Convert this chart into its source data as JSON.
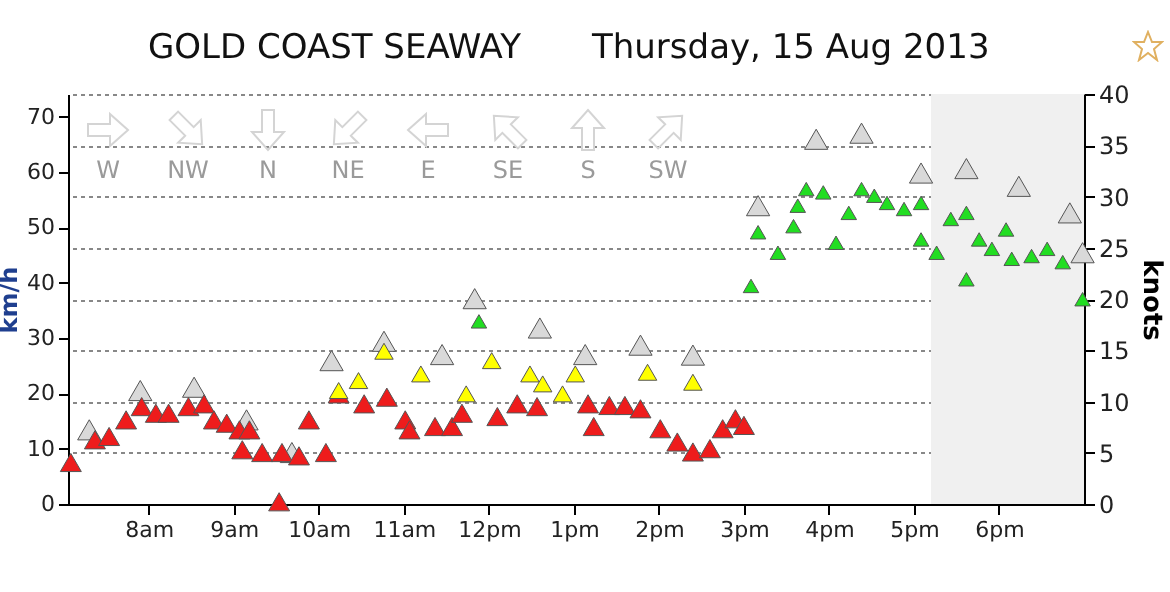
{
  "chart_data": {
    "type": "scatter",
    "title": "GOLD COAST SEAWAY",
    "subtitle": "Thursday, 15 Aug 2013",
    "ylabel": "km/h",
    "y2label": "knots",
    "annotations": [
      "W",
      "NW",
      "N",
      "NE",
      "E",
      "SE",
      "S",
      "SW"
    ],
    "xlim": [
      "2013-08-15T07:03",
      "2013-08-15T19:00"
    ],
    "xticks": [
      {
        "value": "2013-08-15T08:00",
        "label": "8am"
      },
      {
        "value": "2013-08-15T09:00",
        "label": "9am"
      },
      {
        "value": "2013-08-15T10:00",
        "label": "10am"
      },
      {
        "value": "2013-08-15T11:00",
        "label": "11am"
      },
      {
        "value": "2013-08-15T12:00",
        "label": "12pm"
      },
      {
        "value": "2013-08-15T13:00",
        "label": "1pm"
      },
      {
        "value": "2013-08-15T14:00",
        "label": "2pm"
      },
      {
        "value": "2013-08-15T15:00",
        "label": "3pm"
      },
      {
        "value": "2013-08-15T16:00",
        "label": "4pm"
      },
      {
        "value": "2013-08-15T17:00",
        "label": "5pm"
      },
      {
        "value": "2013-08-15T18:00",
        "label": "6pm"
      }
    ],
    "ylim": [
      0,
      74.08
    ],
    "yticks": [
      0,
      10,
      20,
      30,
      40,
      50,
      60,
      70
    ],
    "y2lim": [
      0,
      40
    ],
    "y2ticks": [
      0,
      5,
      10,
      15,
      20,
      25,
      30,
      35,
      40
    ],
    "grid": "y",
    "marker": "triangle",
    "bands": [
      {
        "axis": "x",
        "from": "2013-08-15T17:12",
        "to": "2013-08-15T19:00",
        "color": "#f0f0f0"
      }
    ],
    "series": [
      {
        "color": "#d9d9d9",
        "x": [
          "2013-08-15T07:18",
          "2013-08-15T07:54",
          "2013-08-15T08:32",
          "2013-08-15T09:09",
          "2013-08-15T09:41",
          "2013-08-15T10:09",
          "2013-08-15T10:46",
          "2013-08-15T11:27",
          "2013-08-15T11:50",
          "2013-08-15T12:36",
          "2013-08-15T13:08",
          "2013-08-15T13:47",
          "2013-08-15T14:24",
          "2013-08-15T15:10",
          "2013-08-15T15:51",
          "2013-08-15T16:23",
          "2013-08-15T17:05",
          "2013-08-15T17:37",
          "2013-08-15T18:14",
          "2013-08-15T18:50",
          "2013-08-15T18:59"
        ],
        "values": [
          13.4,
          20.5,
          21.1,
          15.2,
          9.3,
          25.9,
          29.4,
          27,
          37.1,
          31.8,
          27,
          28.7,
          26.9,
          53.9,
          65.9,
          67,
          59.8,
          60.6,
          57.4,
          52.6,
          45.4
        ]
      },
      {
        "color": "#ee1c1c",
        "x": [
          "2013-08-15T07:05",
          "2013-08-15T07:22",
          "2013-08-15T07:32",
          "2013-08-15T07:44",
          "2013-08-15T07:55",
          "2013-08-15T08:05",
          "2013-08-15T08:14",
          "2013-08-15T08:28",
          "2013-08-15T08:39",
          "2013-08-15T08:46",
          "2013-08-15T08:55",
          "2013-08-15T09:04",
          "2013-08-15T09:06",
          "2013-08-15T09:11",
          "2013-08-15T09:20",
          "2013-08-15T09:32",
          "2013-08-15T09:34",
          "2013-08-15T09:46",
          "2013-08-15T09:53",
          "2013-08-15T10:05",
          "2013-08-15T10:14",
          "2013-08-15T10:32",
          "2013-08-15T10:48",
          "2013-08-15T11:01",
          "2013-08-15T11:04",
          "2013-08-15T11:22",
          "2013-08-15T11:34",
          "2013-08-15T11:41",
          "2013-08-15T12:06",
          "2013-08-15T12:20",
          "2013-08-15T12:34",
          "2013-08-15T13:10",
          "2013-08-15T13:14",
          "2013-08-15T13:25",
          "2013-08-15T13:36",
          "2013-08-15T13:47",
          "2013-08-15T14:01",
          "2013-08-15T14:13",
          "2013-08-15T14:24",
          "2013-08-15T14:36",
          "2013-08-15T14:45",
          "2013-08-15T14:54",
          "2013-08-15T15:00"
        ],
        "values": [
          7.5,
          11.6,
          12.2,
          15.2,
          17.6,
          16.4,
          16.4,
          17.6,
          18.1,
          15.2,
          14.6,
          13.4,
          9.8,
          13.4,
          9.3,
          0.4,
          9.3,
          8.7,
          15.2,
          9.3,
          19.9,
          18.1,
          19.3,
          15.2,
          13.4,
          14,
          14,
          16.4,
          15.8,
          18.1,
          17.6,
          18.1,
          14,
          17.8,
          17.8,
          17.2,
          13.6,
          11.2,
          9.4,
          10,
          13.6,
          15.4,
          14.2
        ]
      },
      {
        "color": "#ffff00",
        "x": [
          "2013-08-15T10:14",
          "2013-08-15T10:28",
          "2013-08-15T10:46",
          "2013-08-15T11:12",
          "2013-08-15T11:44",
          "2013-08-15T12:02",
          "2013-08-15T12:29",
          "2013-08-15T12:38",
          "2013-08-15T12:52",
          "2013-08-15T13:01",
          "2013-08-15T13:52",
          "2013-08-15T14:24"
        ],
        "values": [
          20.5,
          22.3,
          27.6,
          23.5,
          19.9,
          25.9,
          23.5,
          21.7,
          19.9,
          23.5,
          23.8,
          22
        ]
      },
      {
        "color": "#22dd22",
        "x": [
          "2013-08-15T11:53",
          "2013-08-15T15:05",
          "2013-08-15T15:10",
          "2013-08-15T15:24",
          "2013-08-15T15:35",
          "2013-08-15T15:38",
          "2013-08-15T15:44",
          "2013-08-15T15:56",
          "2013-08-15T16:05",
          "2013-08-15T16:14",
          "2013-08-15T16:23",
          "2013-08-15T16:32",
          "2013-08-15T16:41",
          "2013-08-15T16:53",
          "2013-08-15T17:05",
          "2013-08-15T17:05",
          "2013-08-15T17:16",
          "2013-08-15T17:26",
          "2013-08-15T17:37",
          "2013-08-15T17:37",
          "2013-08-15T17:46",
          "2013-08-15T17:55",
          "2013-08-15T18:05",
          "2013-08-15T18:09",
          "2013-08-15T18:23",
          "2013-08-15T18:34",
          "2013-08-15T18:45",
          "2013-08-15T18:59"
        ],
        "values": [
          33,
          39.4,
          49.1,
          45.4,
          50.2,
          53.9,
          56.9,
          56.3,
          47.2,
          52.6,
          56.9,
          55.7,
          54.4,
          53.3,
          54.4,
          47.8,
          45.4,
          51.5,
          52.6,
          40.6,
          47.8,
          46.1,
          49.6,
          44.3,
          44.8,
          46.1,
          43.7,
          37
        ]
      }
    ]
  }
}
